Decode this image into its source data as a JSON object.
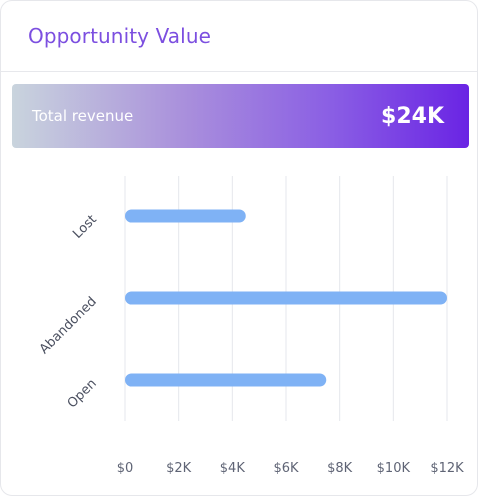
{
  "card": {
    "title": "Opportunity Value"
  },
  "summary": {
    "label": "Total revenue",
    "value": "$24K"
  },
  "colors": {
    "title": "#7c4fe0",
    "bar": "#7fb2f5",
    "grid": "#e5e7ec"
  },
  "chart_data": {
    "type": "bar",
    "orientation": "horizontal",
    "categories": [
      "Lost",
      "Abandoned",
      "Open"
    ],
    "values": [
      4500,
      12000,
      7500
    ],
    "xlim": [
      0,
      12000
    ],
    "x_ticks": [
      0,
      2000,
      4000,
      6000,
      8000,
      10000,
      12000
    ],
    "x_tick_labels": [
      "$0",
      "$2K",
      "$4K",
      "$6K",
      "$8K",
      "$10K",
      "$12K"
    ],
    "grid": true,
    "legend": false
  }
}
